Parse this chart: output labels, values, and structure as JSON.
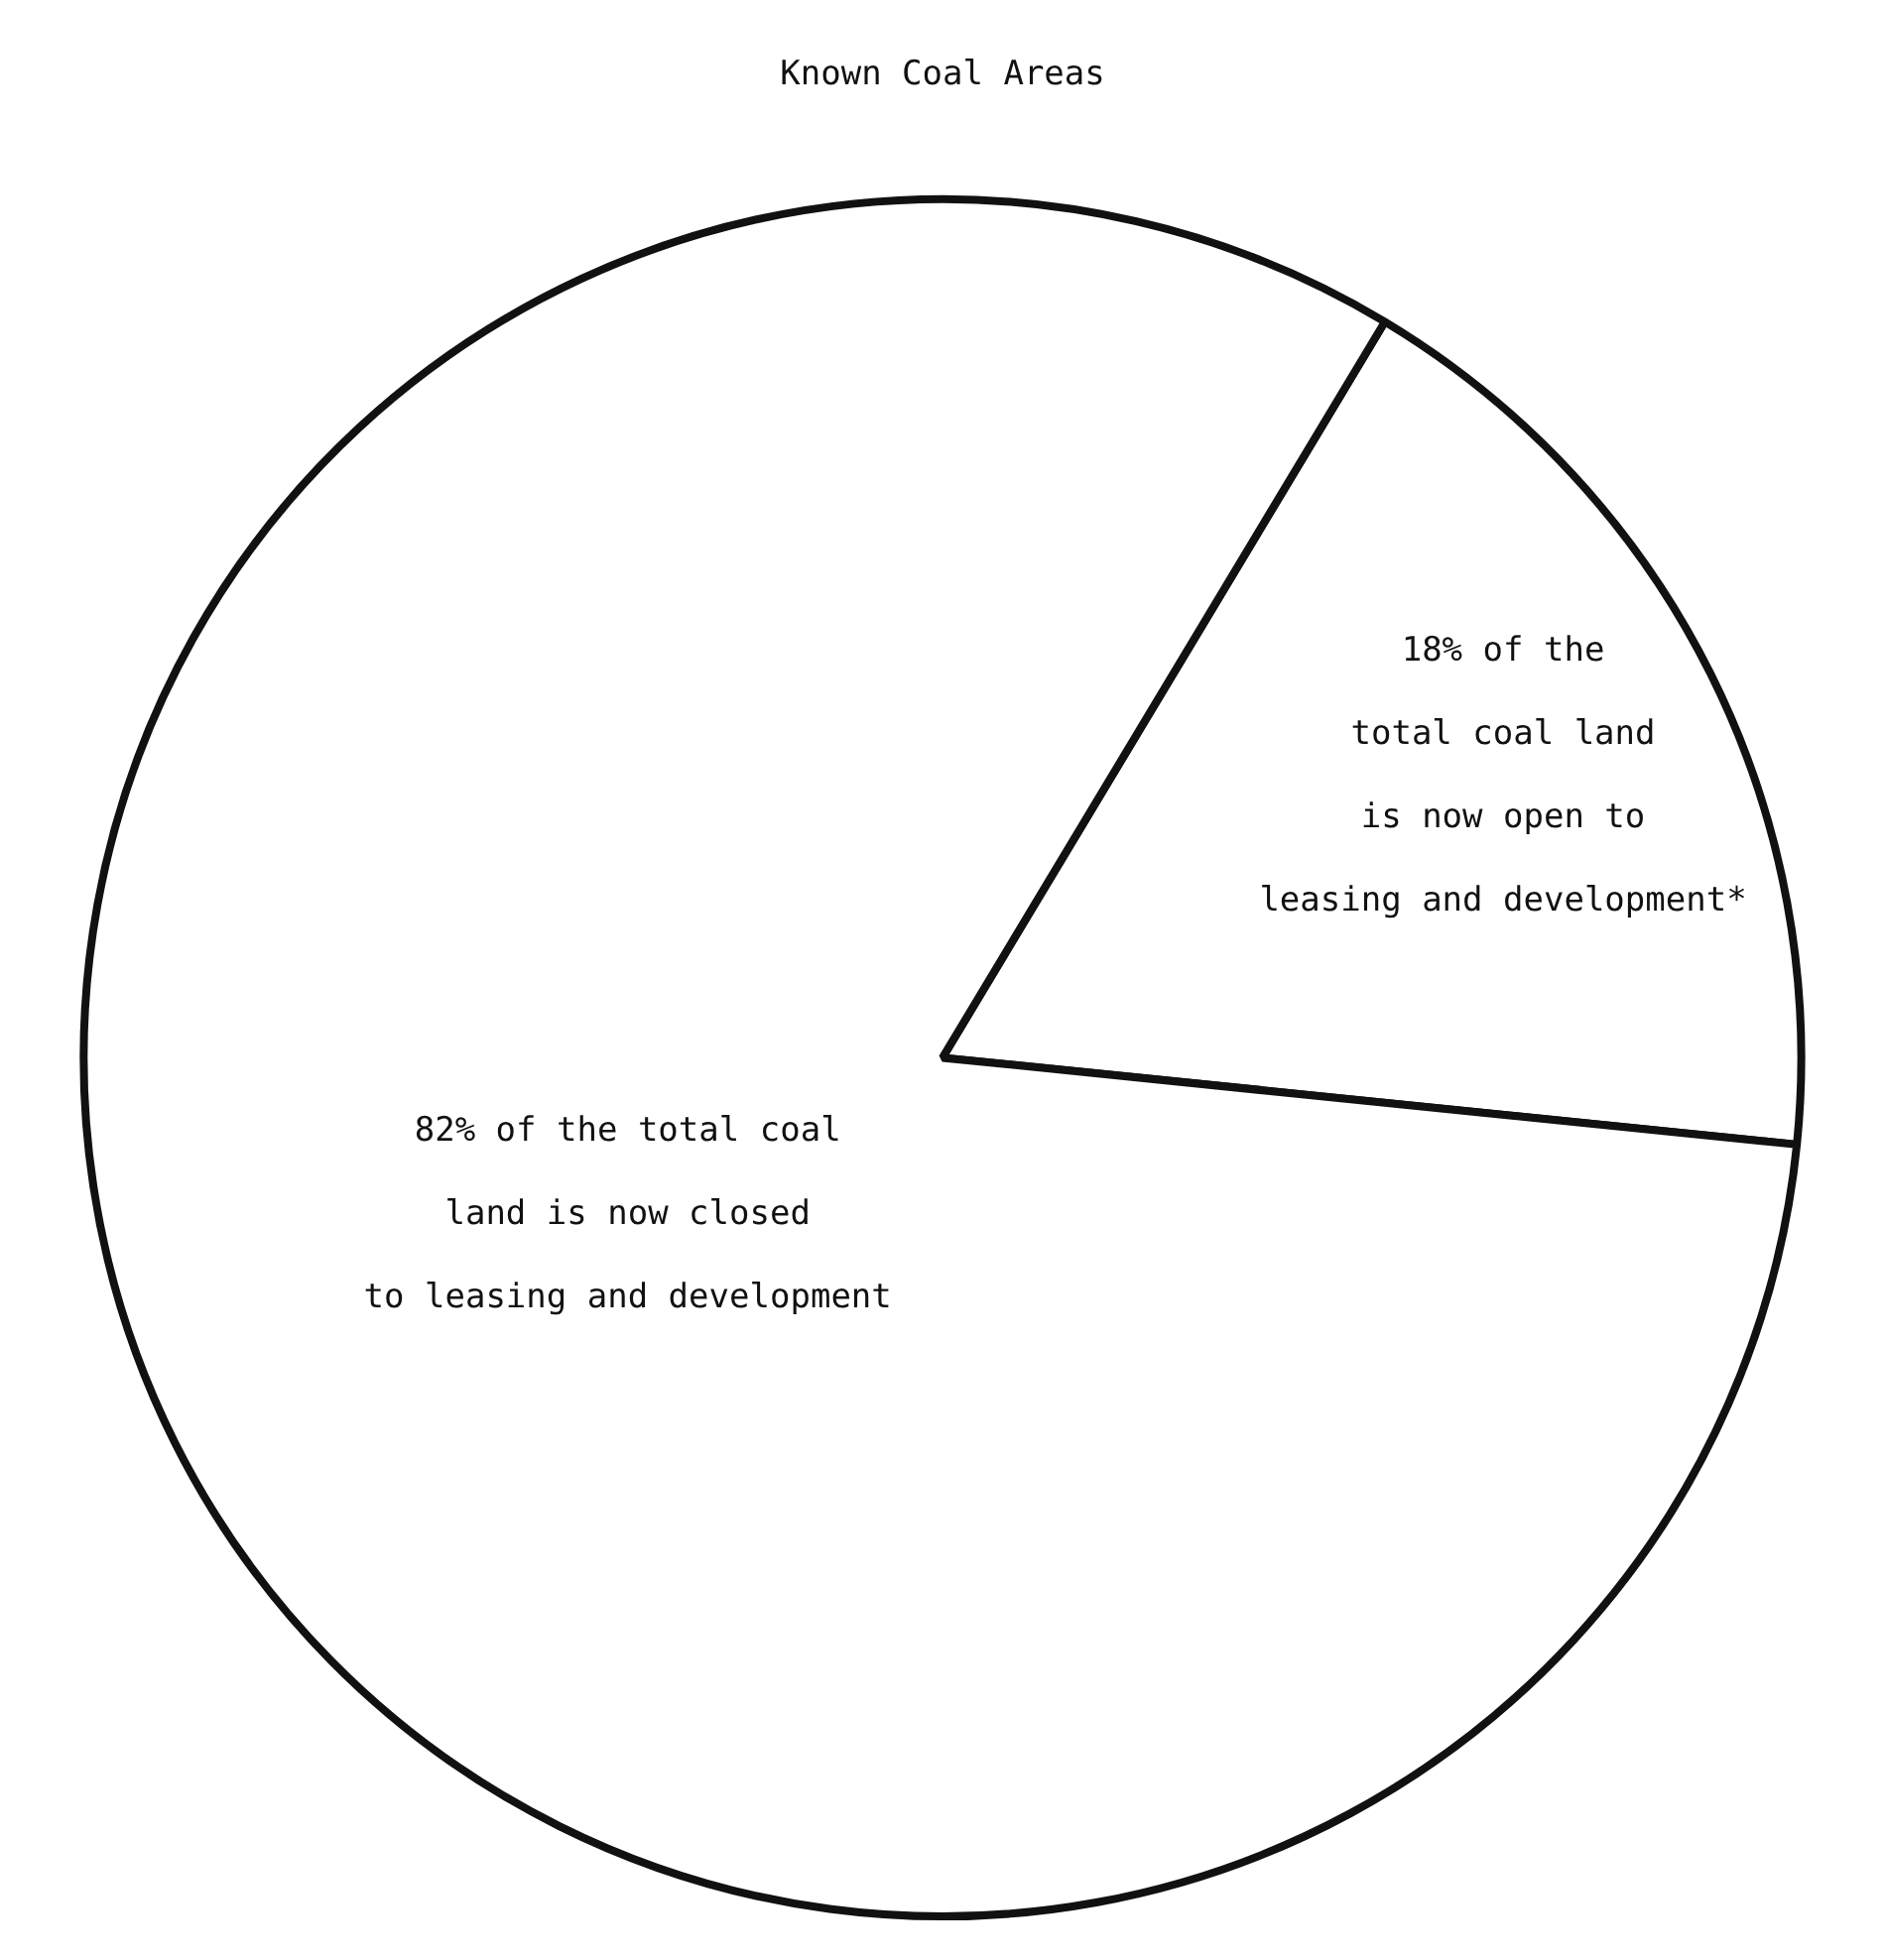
{
  "chart_data": {
    "type": "pie",
    "title": "Known Coal Areas",
    "categories": [
      "18% of the\ntotal coal land\nis now open to\nleasing and development*",
      "82% of the total coal\nland is now closed\nto leasing and development"
    ],
    "values": [
      18,
      82
    ],
    "colors": [
      "#ffffff",
      "#ffffff"
    ],
    "legend": false
  }
}
